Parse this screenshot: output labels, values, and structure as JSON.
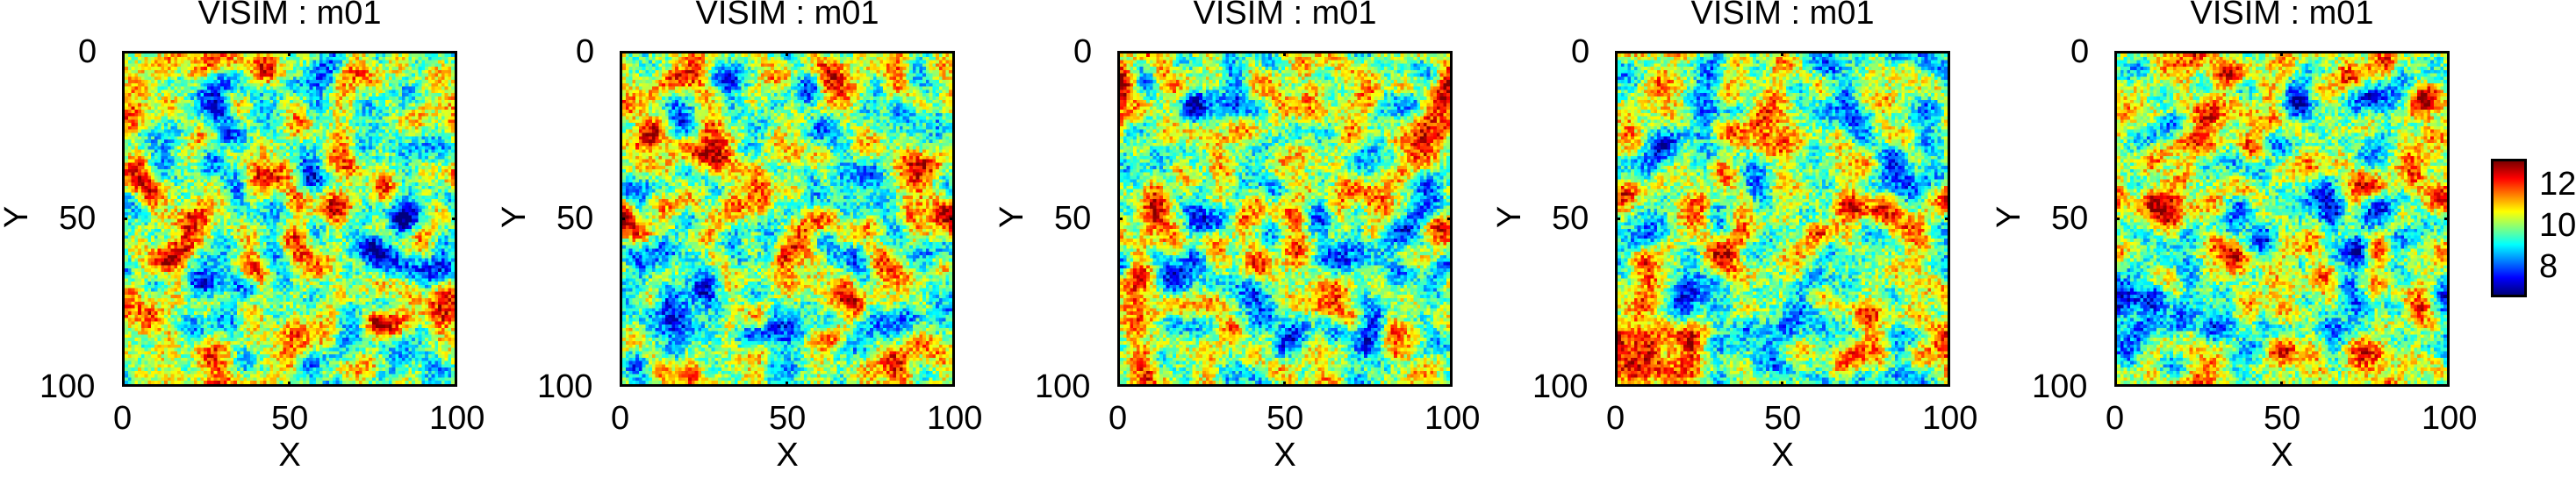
{
  "chart_data": [
    {
      "type": "heatmap",
      "title": "VISIM : m01",
      "xlabel": "X",
      "ylabel": "Y",
      "xlim": [
        0,
        100
      ],
      "ylim": [
        0,
        100
      ],
      "xticks": [
        "0",
        "50",
        "100"
      ],
      "yticks": [
        "0",
        "50",
        "100"
      ],
      "grid_size": [
        100,
        100
      ],
      "colormap": "jet"
    },
    {
      "type": "heatmap",
      "title": "VISIM : m01",
      "xlabel": "X",
      "ylabel": "Y",
      "xlim": [
        0,
        100
      ],
      "ylim": [
        0,
        100
      ],
      "xticks": [
        "0",
        "50",
        "100"
      ],
      "yticks": [
        "0",
        "50",
        "100"
      ],
      "grid_size": [
        100,
        100
      ],
      "colormap": "jet"
    },
    {
      "type": "heatmap",
      "title": "VISIM : m01",
      "xlabel": "X",
      "ylabel": "Y",
      "xlim": [
        0,
        100
      ],
      "ylim": [
        0,
        100
      ],
      "xticks": [
        "0",
        "50",
        "100"
      ],
      "yticks": [
        "0",
        "50",
        "100"
      ],
      "grid_size": [
        100,
        100
      ],
      "colormap": "jet"
    },
    {
      "type": "heatmap",
      "title": "VISIM : m01",
      "xlabel": "X",
      "ylabel": "Y",
      "xlim": [
        0,
        100
      ],
      "ylim": [
        0,
        100
      ],
      "xticks": [
        "0",
        "50",
        "100"
      ],
      "yticks": [
        "0",
        "50",
        "100"
      ],
      "grid_size": [
        100,
        100
      ],
      "colormap": "jet"
    },
    {
      "type": "heatmap",
      "title": "VISIM : m01",
      "xlabel": "X",
      "ylabel": "Y",
      "xlim": [
        0,
        100
      ],
      "ylim": [
        0,
        100
      ],
      "xticks": [
        "0",
        "50",
        "100"
      ],
      "yticks": [
        "0",
        "50",
        "100"
      ],
      "grid_size": [
        100,
        100
      ],
      "colormap": "jet"
    }
  ],
  "colorbar": {
    "ticks": [
      "12",
      "10",
      "8"
    ],
    "tick_values": [
      12,
      10,
      8
    ],
    "range": [
      6.5,
      13.2
    ],
    "colormap": "jet"
  }
}
